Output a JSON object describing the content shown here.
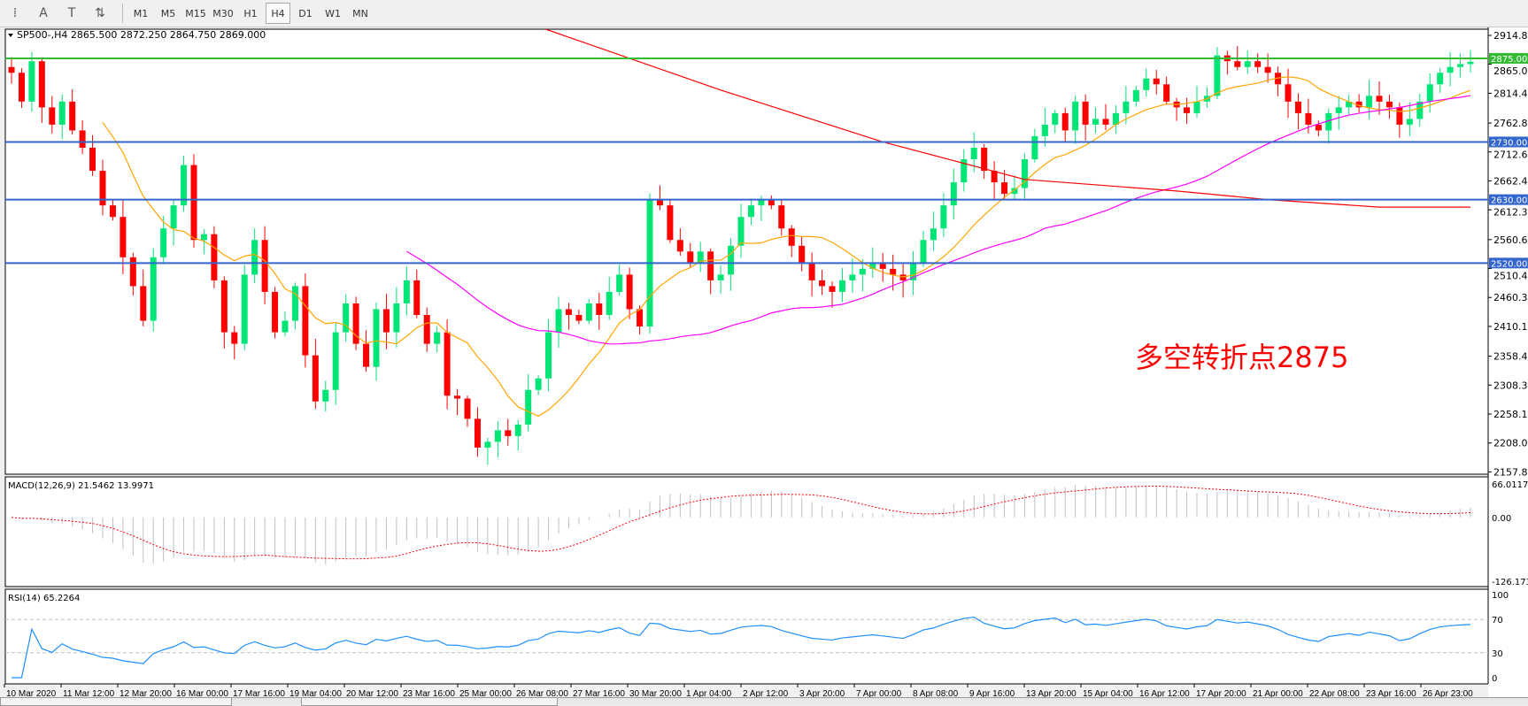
{
  "toolbar": {
    "icons": [
      "period-separators-icon",
      "text-label-icon",
      "text-icon",
      "arrows-icon"
    ],
    "icon_glyphs": [
      "⁞",
      "A",
      "T",
      "⇅"
    ],
    "timeframes": [
      "M1",
      "M5",
      "M15",
      "M30",
      "H1",
      "H4",
      "D1",
      "W1",
      "MN"
    ],
    "active_timeframe": "H4"
  },
  "chart_title": "SP500-,H4  2865.500 2872.250 2864.750 2869.000",
  "macd_title": "MACD(12,26,9) 21.5462 13.9971",
  "rsi_title": "RSI(14) 65.2264",
  "annotation": {
    "text": "多空转折点2875",
    "color": "#ff0000"
  },
  "colors": {
    "bull": "#00e676",
    "bear": "#ff0000",
    "ma_fast": "#ffa500",
    "ma_mid": "#ff00ff",
    "ma_slow": "#ff0000",
    "hline_blue": "#3366cc",
    "hline_green": "#33bb33",
    "rsi": "#1e90ff",
    "macd_hist": "#c0c0c0",
    "macd_signal": "#ff0000"
  },
  "chart_data": {
    "type": "candlestick",
    "symbol": "SP500-",
    "timeframe": "H4",
    "price_axis": {
      "ticks": [
        "2914.810",
        "2865.000",
        "2814.490",
        "2762.810",
        "2712.650",
        "2662.490",
        "2612.330",
        "2560.650",
        "2510.490",
        "2460.330",
        "2410.170",
        "2358.490",
        "2308.330",
        "2258.170",
        "2208.010",
        "2157.890"
      ],
      "ylim": [
        2157.89,
        2914.81
      ]
    },
    "closes": [
      2850,
      2800,
      2870,
      2790,
      2760,
      2800,
      2750,
      2720,
      2680,
      2620,
      2600,
      2530,
      2480,
      2420,
      2530,
      2580,
      2620,
      2690,
      2560,
      2570,
      2490,
      2400,
      2380,
      2500,
      2560,
      2470,
      2400,
      2420,
      2480,
      2360,
      2280,
      2300,
      2400,
      2450,
      2380,
      2340,
      2440,
      2400,
      2450,
      2490,
      2430,
      2380,
      2400,
      2290,
      2285,
      2250,
      2200,
      2210,
      2230,
      2220,
      2240,
      2300,
      2320,
      2400,
      2440,
      2430,
      2420,
      2450,
      2430,
      2470,
      2500,
      2440,
      2410,
      2630,
      2620,
      2560,
      2540,
      2520,
      2540,
      2490,
      2500,
      2550,
      2600,
      2620,
      2630,
      2620,
      2580,
      2550,
      2520,
      2490,
      2480,
      2470,
      2490,
      2500,
      2510,
      2520,
      2510,
      2500,
      2490,
      2520,
      2560,
      2580,
      2620,
      2660,
      2700,
      2720,
      2680,
      2660,
      2640,
      2650,
      2700,
      2740,
      2760,
      2780,
      2750,
      2800,
      2760,
      2770,
      2760,
      2780,
      2800,
      2820,
      2840,
      2830,
      2800,
      2790,
      2780,
      2800,
      2810,
      2880,
      2870,
      2860,
      2870,
      2860,
      2850,
      2830,
      2800,
      2780,
      2760,
      2750,
      2780,
      2790,
      2800,
      2790,
      2810,
      2800,
      2790,
      2760,
      2770,
      2800,
      2830,
      2850,
      2860,
      2865,
      2869
    ],
    "ma_fast_period": 10,
    "ma_mid_period": 40,
    "ma_slow_points": [
      [
        52,
        2930
      ],
      [
        70,
        2820
      ],
      [
        86,
        2730
      ],
      [
        100,
        2665
      ],
      [
        115,
        2645
      ],
      [
        124,
        2630
      ],
      [
        135,
        2617
      ],
      [
        144,
        2617
      ]
    ],
    "horizontal_lines": [
      {
        "price": 2875,
        "label": "2875.000",
        "color": "green"
      },
      {
        "price": 2730,
        "label": "2730.000",
        "color": "blue"
      },
      {
        "price": 2630,
        "label": "2630.000",
        "color": "blue"
      },
      {
        "price": 2520,
        "label": "2520.000",
        "color": "blue"
      }
    ],
    "macd": {
      "ticks": [
        "66.0117",
        "0.00",
        "-126.173"
      ],
      "ylim": [
        -126.173,
        66.0117
      ]
    },
    "rsi": {
      "ticks": [
        "100",
        "70",
        "30",
        "0"
      ],
      "levels": [
        30,
        70
      ]
    },
    "time_labels": [
      "10 Mar 2020",
      "11 Mar 12:00",
      "12 Mar 20:00",
      "16 Mar 00:00",
      "17 Mar 16:00",
      "19 Mar 04:00",
      "20 Mar 12:00",
      "23 Mar 16:00",
      "25 Mar 00:00",
      "26 Mar 08:00",
      "27 Mar 16:00",
      "30 Mar 20:00",
      "1 Apr 04:00",
      "2 Apr 12:00",
      "3 Apr 20:00",
      "7 Apr 00:00",
      "8 Apr 08:00",
      "9 Apr 16:00",
      "13 Apr 20:00",
      "15 Apr 04:00",
      "16 Apr 12:00",
      "17 Apr 20:00",
      "21 Apr 00:00",
      "22 Apr 08:00",
      "23 Apr 16:00",
      "26 Apr 23:00"
    ]
  }
}
